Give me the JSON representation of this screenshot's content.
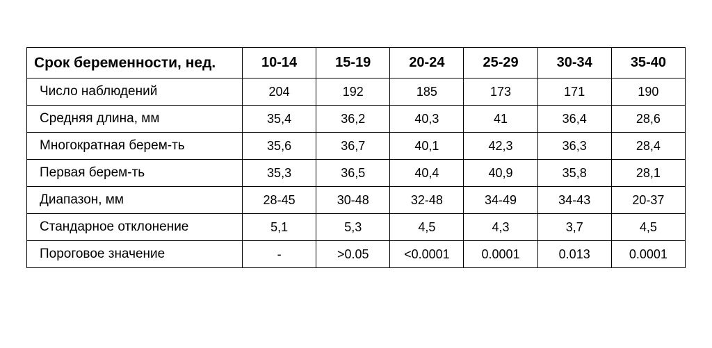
{
  "table": {
    "type": "table",
    "background_color": "#ffffff",
    "border_color": "#000000",
    "border_width": 1,
    "header_fontsize": 20,
    "header_fontweight": 700,
    "rowlabel_header_fontsize": 21,
    "body_fontsize": 18,
    "rowlabel_fontsize": 19,
    "font_family": "Arial",
    "columns": [
      "Срок беременности, нед.",
      "10-14",
      "15-19",
      "20-24",
      "25-29",
      "30-34",
      "35-40"
    ],
    "rows": [
      {
        "label": "Число наблюдений",
        "values": [
          "204",
          "192",
          "185",
          "173",
          "171",
          "190"
        ]
      },
      {
        "label": "Средняя длина, мм",
        "values": [
          "35,4",
          "36,2",
          "40,3",
          "41",
          "36,4",
          "28,6"
        ]
      },
      {
        "label": "Многократная берем-ть",
        "values": [
          "35,6",
          "36,7",
          "40,1",
          "42,3",
          "36,3",
          "28,4"
        ]
      },
      {
        "label": "Первая берем-ть",
        "values": [
          "35,3",
          "36,5",
          "40,4",
          "40,9",
          "35,8",
          "28,1"
        ]
      },
      {
        "label": "Диапазон, мм",
        "values": [
          "28-45",
          "30-48",
          "32-48",
          "34-49",
          "34-43",
          "20-37"
        ]
      },
      {
        "label": "Стандарное отклонение",
        "values": [
          "5,1",
          "5,3",
          "4,5",
          "4,3",
          "3,7",
          "4,5"
        ]
      },
      {
        "label": "Пороговое значение",
        "values": [
          "-",
          ">0.05",
          "<0.0001",
          "0.0001",
          "0.013",
          "0.0001"
        ]
      }
    ]
  }
}
